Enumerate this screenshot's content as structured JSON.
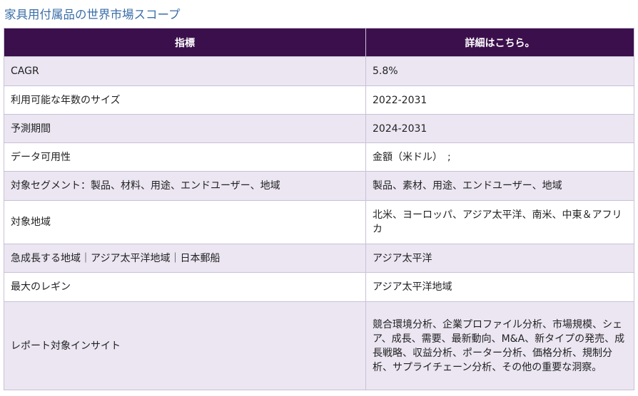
{
  "title": "家具用付属品の世界市場スコープ",
  "header": {
    "indicator": "指標",
    "details": "詳細はこちら。"
  },
  "rows": [
    {
      "label": "CAGR",
      "value": "5.8%"
    },
    {
      "label": "利用可能な年数のサイズ",
      "value": "2022-2031"
    },
    {
      "label": "予測期間",
      "value": "2024-2031"
    },
    {
      "label": "データ可用性",
      "value": "金額（米ドル）　;"
    },
    {
      "label": "対象セグメント：製品、材料、用途、エンドユーザー、地域",
      "value": "製品、素材、用途、エンドユーザー、地域"
    },
    {
      "label": "対象地域",
      "value": "北米、ヨーロッパ、アジア太平洋、南米、中東＆アフリカ"
    },
    {
      "label": "急成長する地域｜アジア太平洋地域｜日本郵船",
      "value": "アジア太平洋"
    },
    {
      "label": "最大のレギン",
      "value": "アジア太平洋地域"
    },
    {
      "label": "レポート対象インサイト",
      "value": "競合環境分析、企業プロファイル分析、市場規模、シェア、成長、需要、最新動向、M&A、新タイプの発売、成長戦略、収益分析、ポーター分析、価格分析、規制分析、サプライチェーン分析、その他の重要な洞察。"
    }
  ]
}
